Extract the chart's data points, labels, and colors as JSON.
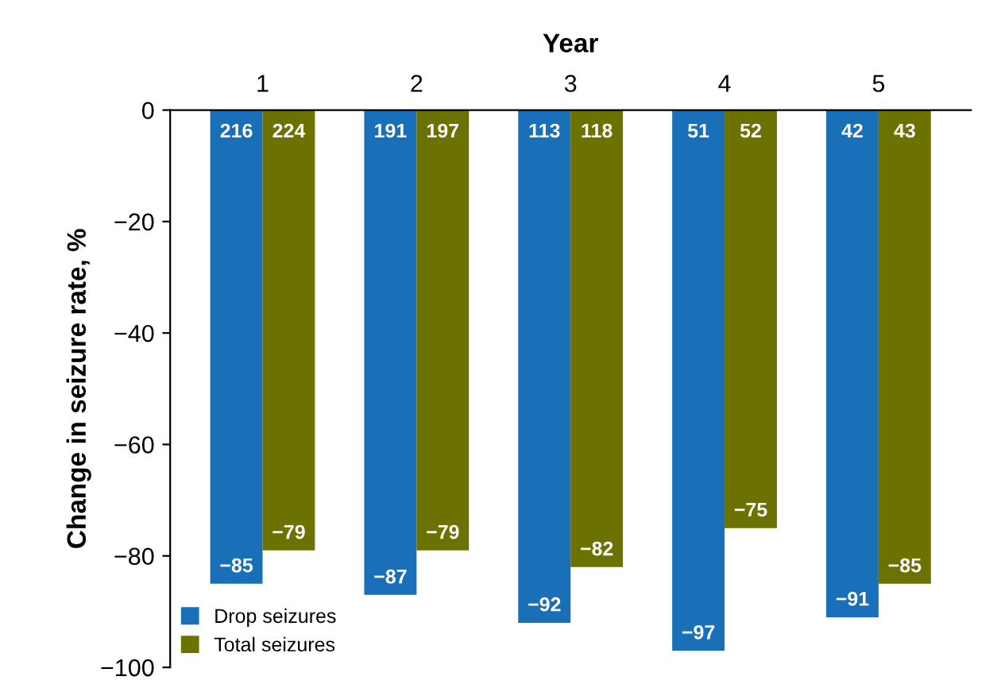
{
  "chart_data": {
    "type": "bar",
    "xlabel": "Year",
    "ylabel": "Change in seizure rate, %",
    "categories": [
      "1",
      "2",
      "3",
      "4",
      "5"
    ],
    "series": [
      {
        "name": "Drop seizures",
        "color": "#1a6fb9",
        "values": [
          -85,
          -87,
          -92,
          -97,
          -91
        ]
      },
      {
        "name": "Total seizures",
        "color": "#6b7200",
        "values": [
          -79,
          -79,
          -82,
          -75,
          -85
        ]
      }
    ],
    "data_labels": true,
    "ylim": [
      -100,
      0
    ],
    "yticks": [
      0,
      -20,
      -40,
      -60,
      -80,
      -100
    ],
    "legend": "bottom left",
    "annotations": [
      {
        "text": "216",
        "x": "1",
        "y": -4
      },
      {
        "text": "224",
        "x": "1",
        "y": -4
      },
      {
        "text": "191",
        "x": "2",
        "y": -4
      },
      {
        "text": "197",
        "x": "2",
        "y": -4
      },
      {
        "text": "113",
        "x": "3",
        "y": -4
      },
      {
        "text": "118",
        "x": "3",
        "y": -4
      },
      {
        "text": "51",
        "x": "4",
        "y": -4
      },
      {
        "text": "52",
        "x": "4",
        "y": -4
      },
      {
        "text": "42",
        "x": "5",
        "y": -4
      },
      {
        "text": "43",
        "x": "5",
        "y": -4
      }
    ]
  }
}
